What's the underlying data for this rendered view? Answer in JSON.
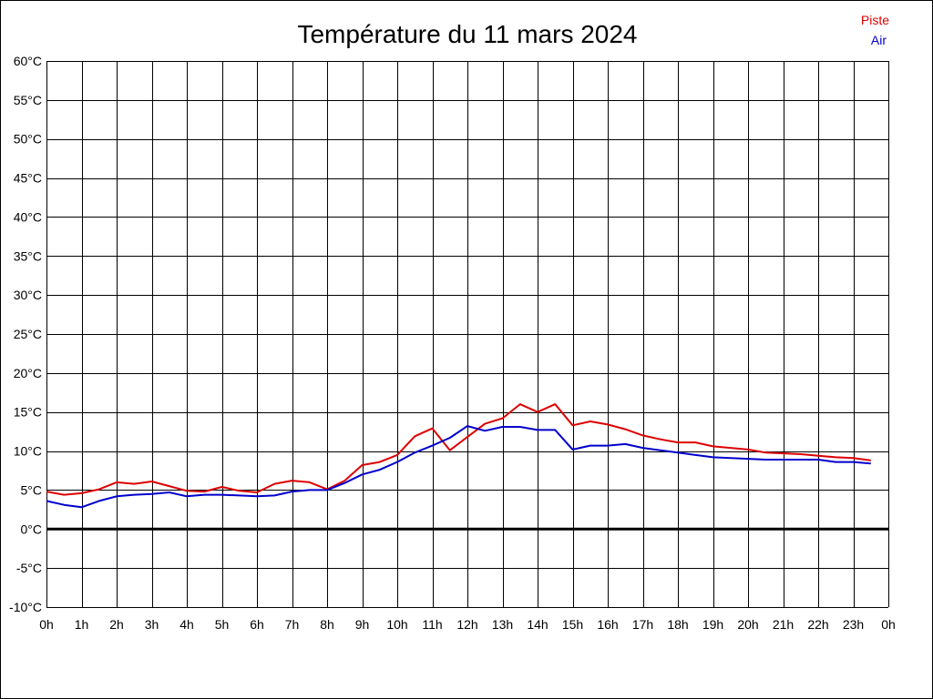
{
  "chart_data": {
    "type": "line",
    "title": "Température du 11 mars 2024",
    "legend_position": "top-right",
    "grid": true,
    "xlim": [
      0,
      24
    ],
    "ylim": [
      -10,
      60
    ],
    "x_tick_labels": [
      "0h",
      "1h",
      "2h",
      "3h",
      "4h",
      "5h",
      "6h",
      "7h",
      "8h",
      "9h",
      "10h",
      "11h",
      "12h",
      "13h",
      "14h",
      "15h",
      "16h",
      "17h",
      "18h",
      "19h",
      "20h",
      "21h",
      "22h",
      "23h",
      "0h"
    ],
    "y_tick_labels": [
      "60°C",
      "55°C",
      "50°C",
      "45°C",
      "40°C",
      "35°C",
      "30°C",
      "25°C",
      "20°C",
      "15°C",
      "10°C",
      "5°C",
      "0°C",
      "-5°C",
      "-10°C"
    ],
    "y_ticks": [
      60,
      55,
      50,
      45,
      40,
      35,
      30,
      25,
      20,
      15,
      10,
      5,
      0,
      -5,
      -10
    ],
    "x": [
      0,
      0.5,
      1,
      1.5,
      2,
      2.5,
      3,
      3.5,
      4,
      4.5,
      5,
      5.5,
      6,
      6.5,
      7,
      7.5,
      8,
      8.5,
      9,
      9.5,
      10,
      10.5,
      11,
      11.5,
      12,
      12.5,
      13,
      13.5,
      14,
      14.5,
      15,
      15.5,
      16,
      16.5,
      17,
      17.5,
      18,
      18.5,
      19,
      19.5,
      20,
      20.5,
      21,
      21.5,
      22,
      22.5,
      23,
      23.5
    ],
    "series": [
      {
        "name": "Piste",
        "color": "#dd0000",
        "values": [
          4.8,
          4.4,
          4.6,
          5.1,
          6.0,
          5.8,
          6.1,
          5.5,
          4.9,
          4.8,
          5.4,
          4.9,
          4.7,
          5.8,
          6.2,
          6.0,
          5.1,
          6.2,
          8.2,
          8.6,
          9.5,
          11.9,
          12.9,
          10.1,
          11.8,
          13.5,
          14.2,
          16.0,
          15.0,
          16.0,
          13.3,
          13.8,
          13.4,
          12.8,
          12.0,
          11.5,
          11.1,
          11.1,
          10.6,
          10.4,
          10.2,
          9.8,
          9.7,
          9.6,
          9.4,
          9.2,
          9.1,
          8.8
        ]
      },
      {
        "name": "Air",
        "color": "#0000cc",
        "values": [
          3.6,
          3.1,
          2.8,
          3.6,
          4.2,
          4.4,
          4.5,
          4.7,
          4.2,
          4.4,
          4.4,
          4.3,
          4.2,
          4.3,
          4.8,
          5.0,
          5.0,
          5.9,
          7.0,
          7.6,
          8.6,
          9.8,
          10.7,
          11.7,
          13.2,
          12.6,
          13.1,
          13.1,
          12.7,
          12.7,
          10.2,
          10.7,
          10.7,
          10.9,
          10.4,
          10.1,
          9.8,
          9.5,
          9.2,
          9.1,
          9.0,
          8.9,
          8.9,
          8.9,
          8.9,
          8.6,
          8.6,
          8.4
        ]
      }
    ]
  }
}
